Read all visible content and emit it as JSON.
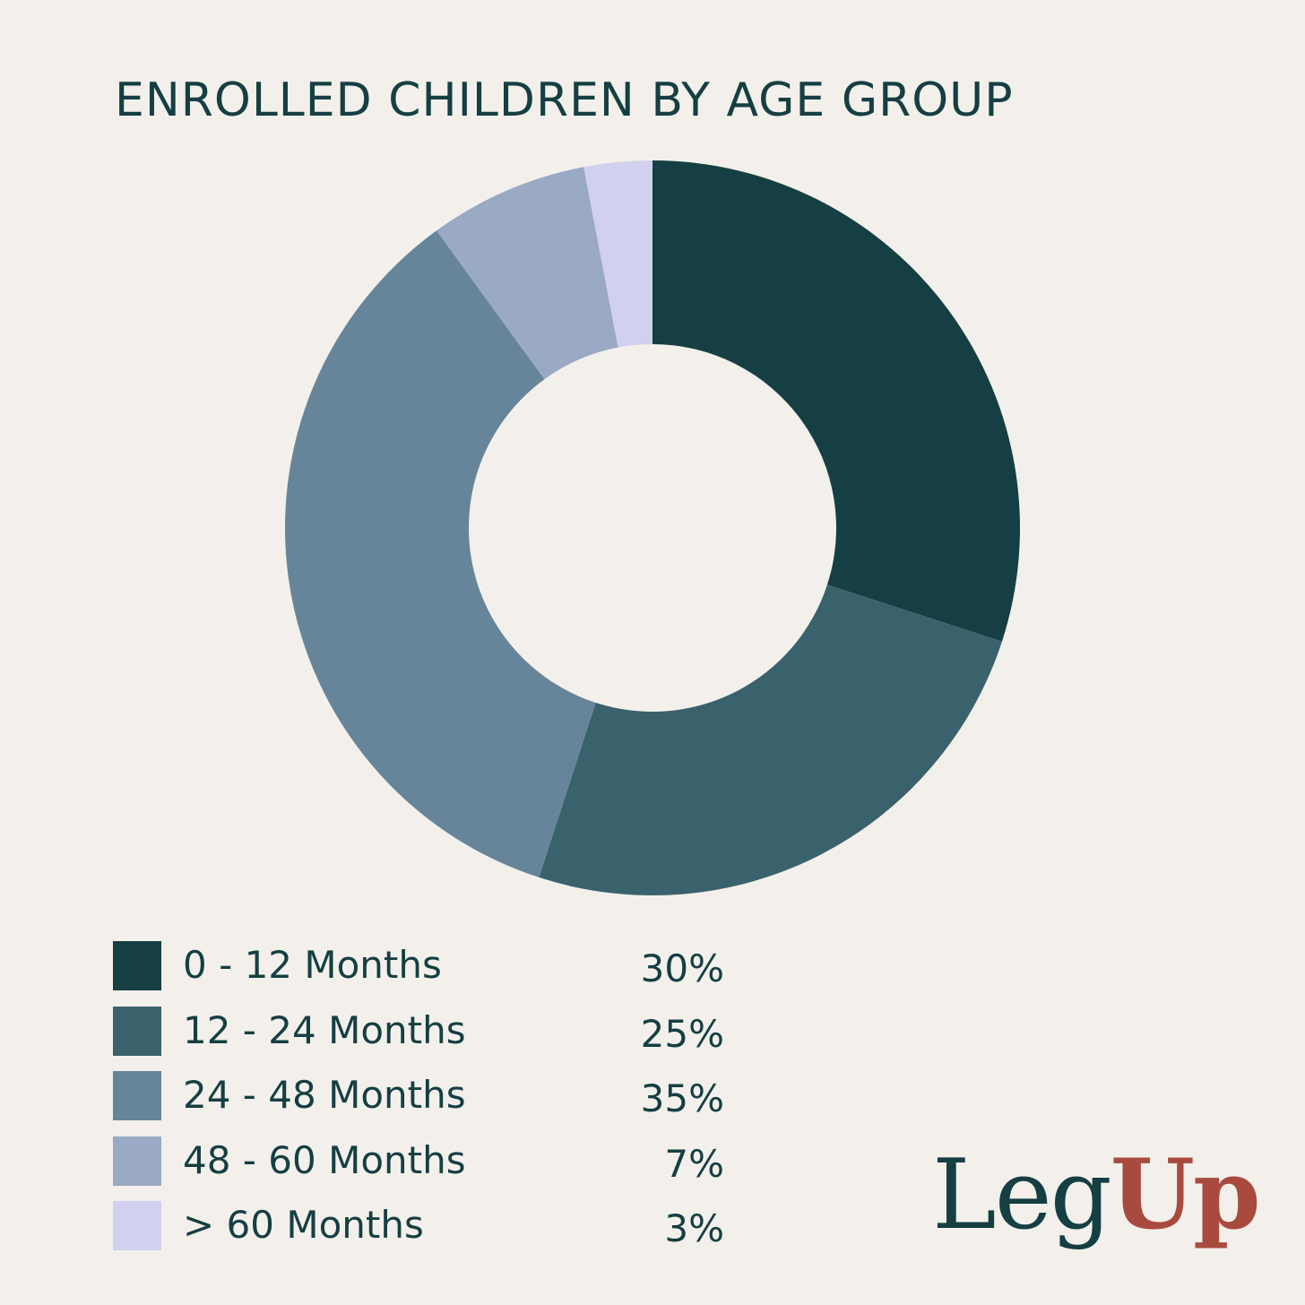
{
  "chart_data": {
    "type": "pie",
    "title": "ENROLLED CHILDREN BY AGE GROUP",
    "donut": true,
    "categories": [
      "0 - 12 Months",
      "12 - 24 Months",
      "24 - 48 Months",
      "48 - 60 Months",
      "> 60 Months"
    ],
    "values": [
      30,
      25,
      35,
      7,
      3
    ],
    "value_labels": [
      "30%",
      "25%",
      "35%",
      "7%",
      "3%"
    ],
    "colors": [
      "#153f42",
      "#3a626d",
      "#67859a",
      "#9aa9c4",
      "#d1d0ee"
    ],
    "legend_position": "bottom-left",
    "start_angle": "top",
    "direction": "clockwise"
  },
  "logo": {
    "part1": "Leg",
    "part2": "Up"
  },
  "colors": {
    "background": "#f3f0eb",
    "text": "#153f42",
    "logo_accent": "#a84b3e"
  }
}
